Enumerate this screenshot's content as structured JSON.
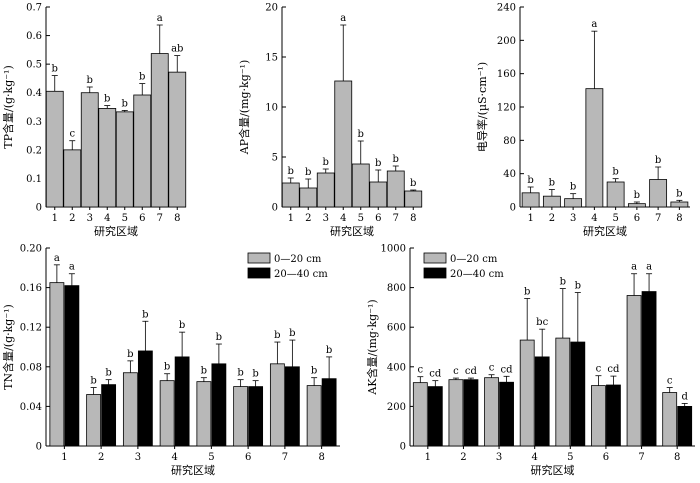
{
  "chart_data": [
    {
      "id": "tp",
      "type": "bar",
      "xlabel": "研究区域",
      "ylabel": "TP含量/(g·kg⁻¹)",
      "categories": [
        "1",
        "2",
        "3",
        "4",
        "5",
        "6",
        "7",
        "8"
      ],
      "ylim": [
        0,
        0.7
      ],
      "yticks": [
        "0",
        "0.1",
        "0.2",
        "0.3",
        "0.4",
        "0.5",
        "0.6",
        "0.7"
      ],
      "series": [
        {
          "values": [
            0.405,
            0.2,
            0.4,
            0.345,
            0.333,
            0.392,
            0.537,
            0.472
          ],
          "errors": [
            0.055,
            0.032,
            0.02,
            0.01,
            0.005,
            0.04,
            0.1,
            0.058
          ],
          "letters": [
            "b",
            "c",
            "b",
            "b",
            "b",
            "b",
            "a",
            "ab"
          ],
          "color": "#b8b8b8"
        }
      ]
    },
    {
      "id": "ap",
      "type": "bar",
      "xlabel": "研究区域",
      "ylabel": "AP含量/(mg·kg⁻¹)",
      "categories": [
        "1",
        "2",
        "3",
        "4",
        "5",
        "6",
        "7",
        "8"
      ],
      "ylim": [
        0,
        20
      ],
      "yticks": [
        "0",
        "5",
        "10",
        "15",
        "20"
      ],
      "series": [
        {
          "values": [
            2.4,
            1.9,
            3.4,
            12.6,
            4.3,
            2.5,
            3.6,
            1.6
          ],
          "errors": [
            0.5,
            0.9,
            0.4,
            5.6,
            2.3,
            1.2,
            0.5,
            0.1
          ],
          "letters": [
            "b",
            "b",
            "b",
            "a",
            "b",
            "b",
            "b",
            "b"
          ],
          "color": "#b8b8b8"
        }
      ]
    },
    {
      "id": "ec",
      "type": "bar",
      "xlabel": "研究区域",
      "ylabel": "电导率/(µS·cm⁻¹)",
      "categories": [
        "1",
        "2",
        "3",
        "4",
        "5",
        "6",
        "7",
        "8"
      ],
      "ylim": [
        0,
        240
      ],
      "yticks": [
        "0",
        "40",
        "80",
        "120",
        "160",
        "200",
        "240"
      ],
      "series": [
        {
          "values": [
            17,
            13,
            10,
            142,
            30,
            4,
            33,
            6
          ],
          "errors": [
            7,
            8,
            6,
            69,
            4,
            2,
            15,
            2
          ],
          "letters": [
            "b",
            "b",
            "b",
            "a",
            "b",
            "b",
            "b",
            "b"
          ],
          "color": "#b8b8b8"
        }
      ]
    },
    {
      "id": "tn",
      "type": "bar",
      "xlabel": "研究区域",
      "ylabel": "TN含量/(g·kg⁻¹)",
      "categories": [
        "1",
        "2",
        "3",
        "4",
        "5",
        "6",
        "7",
        "8"
      ],
      "ylim": [
        0,
        0.2
      ],
      "yticks": [
        "0",
        "0.04",
        "0.08",
        "0.12",
        "0.16",
        "0.20"
      ],
      "legend": "top-right",
      "series": [
        {
          "name": "0—20 cm",
          "values": [
            0.165,
            0.052,
            0.074,
            0.066,
            0.065,
            0.06,
            0.083,
            0.061
          ],
          "errors": [
            0.018,
            0.007,
            0.012,
            0.007,
            0.004,
            0.007,
            0.022,
            0.008
          ],
          "letters": [
            "a",
            "b",
            "b",
            "b",
            "b",
            "b",
            "b",
            "b"
          ],
          "color": "#b8b8b8"
        },
        {
          "name": "20—40 cm",
          "values": [
            0.162,
            0.062,
            0.096,
            0.09,
            0.083,
            0.06,
            0.08,
            0.068
          ],
          "errors": [
            0.012,
            0.005,
            0.03,
            0.025,
            0.02,
            0.006,
            0.027,
            0.022
          ],
          "letters": [
            "a",
            "b",
            "b",
            "b",
            "b",
            "b",
            "b",
            "b"
          ],
          "color": "#000000"
        }
      ]
    },
    {
      "id": "ak",
      "type": "bar",
      "xlabel": "研究区域",
      "ylabel": "AK含量/(mg·kg⁻¹)",
      "categories": [
        "1",
        "2",
        "3",
        "4",
        "5",
        "6",
        "7",
        "8"
      ],
      "ylim": [
        0,
        1000
      ],
      "yticks": [
        "0",
        "200",
        "400",
        "600",
        "800",
        "1000"
      ],
      "legend": "top-left",
      "series": [
        {
          "name": "0—20 cm",
          "values": [
            320,
            335,
            345,
            535,
            545,
            305,
            760,
            270
          ],
          "errors": [
            30,
            8,
            15,
            210,
            250,
            50,
            110,
            25
          ],
          "letters": [
            "c",
            "c",
            "c",
            "b",
            "b",
            "c",
            "a",
            "c"
          ],
          "color": "#b8b8b8"
        },
        {
          "name": "20—40 cm",
          "values": [
            300,
            335,
            322,
            450,
            525,
            308,
            780,
            200
          ],
          "errors": [
            30,
            8,
            30,
            140,
            250,
            45,
            90,
            15
          ],
          "letters": [
            "cd",
            "cd",
            "cd",
            "bc",
            "b",
            "cd",
            "a",
            "d"
          ],
          "color": "#000000"
        }
      ]
    }
  ]
}
